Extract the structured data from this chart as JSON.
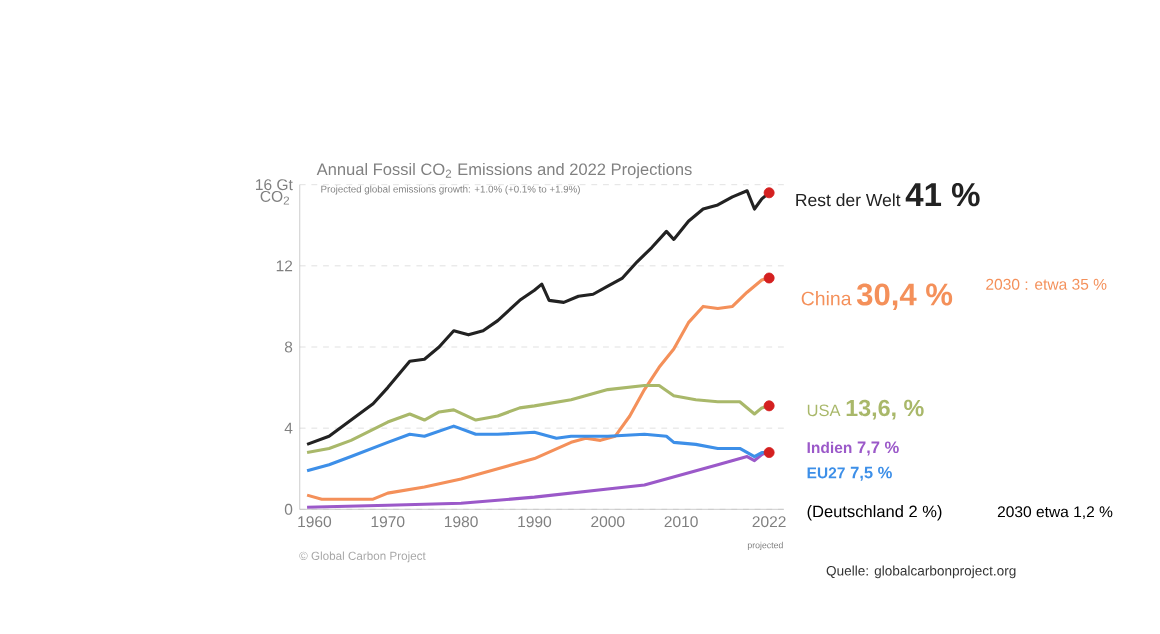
{
  "chart_data": {
    "type": "line",
    "title": "Annual Fossil CO$_{2}$ Emissions and 2022 Projections",
    "subtitle": "Projected global emissions growth: +1.0% (+0.1% to +1.9%)",
    "ylabel": "CO$_{2}$",
    "xlim": [
      1958,
      2024
    ],
    "xticks": [
      1960,
      1970,
      1980,
      1990,
      2000,
      2010,
      2022
    ],
    "ylim": [
      0,
      16
    ],
    "yticks": [
      0,
      4,
      8,
      12,
      {
        "value": 16,
        "label": "16 Gt"
      }
    ],
    "grid": "y",
    "series": [
      {
        "name": "Rest der Welt",
        "color": "#222222",
        "x": [
          1959,
          1962,
          1965,
          1968,
          1970,
          1973,
          1975,
          1977,
          1979,
          1981,
          1983,
          1985,
          1988,
          1990,
          1991,
          1992,
          1994,
          1996,
          1998,
          2000,
          2002,
          2004,
          2006,
          2008,
          2009,
          2011,
          2013,
          2015,
          2017,
          2019,
          2020,
          2021,
          2022
        ],
        "values": [
          3.2,
          3.6,
          4.4,
          5.2,
          6.0,
          7.3,
          7.4,
          8.0,
          8.8,
          8.6,
          8.8,
          9.3,
          10.3,
          10.8,
          11.1,
          10.3,
          10.2,
          10.5,
          10.6,
          11.0,
          11.4,
          12.2,
          12.9,
          13.7,
          13.3,
          14.2,
          14.8,
          15.0,
          15.4,
          15.7,
          14.8,
          15.3,
          15.6
        ]
      },
      {
        "name": "China",
        "color": "#f4905a",
        "x": [
          1959,
          1961,
          1965,
          1968,
          1970,
          1975,
          1980,
          1985,
          1990,
          1995,
          1997,
          1999,
          2001,
          2003,
          2005,
          2007,
          2009,
          2011,
          2013,
          2015,
          2017,
          2019,
          2021,
          2022
        ],
        "values": [
          0.7,
          0.5,
          0.5,
          0.5,
          0.8,
          1.1,
          1.5,
          2.0,
          2.5,
          3.3,
          3.5,
          3.4,
          3.6,
          4.6,
          5.9,
          7.0,
          7.9,
          9.2,
          10.0,
          9.9,
          10.0,
          10.7,
          11.3,
          11.4
        ]
      },
      {
        "name": "USA",
        "color": "#a9b86a",
        "x": [
          1959,
          1962,
          1965,
          1970,
          1973,
          1975,
          1977,
          1979,
          1982,
          1985,
          1988,
          1990,
          1995,
          2000,
          2005,
          2007,
          2009,
          2012,
          2015,
          2018,
          2020,
          2021,
          2022
        ],
        "values": [
          2.8,
          3.0,
          3.4,
          4.3,
          4.7,
          4.4,
          4.8,
          4.9,
          4.4,
          4.6,
          5.0,
          5.1,
          5.4,
          5.9,
          6.1,
          6.1,
          5.6,
          5.4,
          5.3,
          5.3,
          4.7,
          5.0,
          5.1
        ]
      },
      {
        "name": "Indien",
        "color": "#9b59c9",
        "x": [
          1959,
          1970,
          1980,
          1990,
          2000,
          2005,
          2010,
          2015,
          2019,
          2020,
          2021,
          2022
        ],
        "values": [
          0.1,
          0.2,
          0.3,
          0.6,
          1.0,
          1.2,
          1.7,
          2.2,
          2.6,
          2.4,
          2.7,
          2.9
        ]
      },
      {
        "name": "EU27",
        "color": "#3d8fe8",
        "x": [
          1959,
          1962,
          1965,
          1970,
          1973,
          1975,
          1979,
          1982,
          1985,
          1990,
          1993,
          1995,
          2000,
          2005,
          2008,
          2009,
          2012,
          2015,
          2018,
          2020,
          2021,
          2022
        ],
        "values": [
          1.9,
          2.2,
          2.6,
          3.3,
          3.7,
          3.6,
          4.1,
          3.7,
          3.7,
          3.8,
          3.5,
          3.6,
          3.6,
          3.7,
          3.6,
          3.3,
          3.2,
          3.0,
          3.0,
          2.6,
          2.8,
          2.8
        ]
      },
      {
        "type": "scatter",
        "marker": "circle",
        "color": "#d42020",
        "x": [
          2022,
          2022,
          2022,
          2022
        ],
        "values": [
          15.6,
          11.4,
          5.1,
          2.8
        ]
      }
    ],
    "annotations": [
      "41 %",
      "30,4 %",
      "13,6, %",
      "7,7 %",
      "7,5 %",
      "2030 : etwa 35 %",
      "(Deutschland 2 %)",
      "2030 etwa 1,2 %",
      "Quelle: globalcarbonproject.org",
      "© Global Carbon Project",
      "projected"
    ]
  }
}
